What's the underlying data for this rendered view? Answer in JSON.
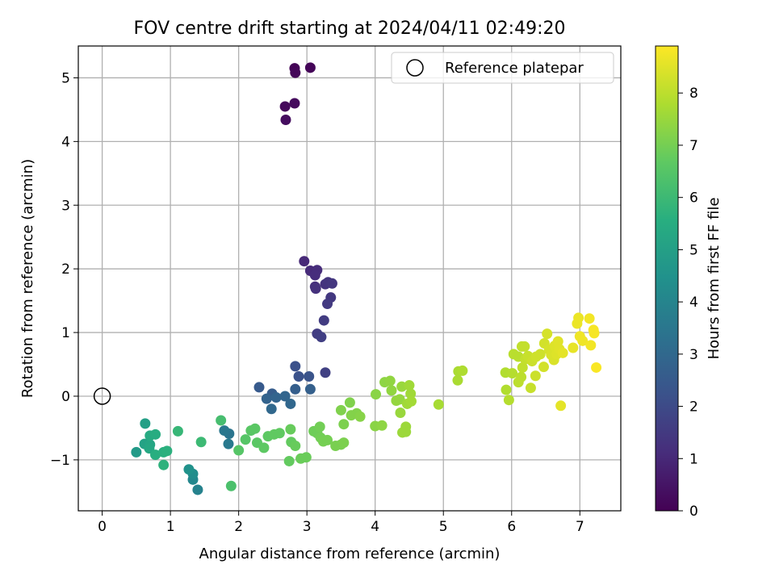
{
  "chart_data": {
    "type": "scatter",
    "title": "FOV centre drift starting at 2024/04/11 02:49:20",
    "xlabel": "Angular distance from reference (arcmin)",
    "ylabel": "Rotation from reference (arcmin)",
    "xlim": [
      -0.35,
      7.6
    ],
    "ylim": [
      -1.8,
      5.5
    ],
    "xticks": [
      0,
      1,
      2,
      3,
      4,
      5,
      6,
      7
    ],
    "yticks": [
      -1,
      0,
      1,
      2,
      3,
      4,
      5
    ],
    "grid": true,
    "legend": {
      "location": "upper-right",
      "entries": [
        "Reference platepar"
      ]
    },
    "reference_point": {
      "x": 0,
      "y": 0,
      "label": "Reference platepar"
    },
    "colorbar": {
      "label": "Hours from first FF file",
      "range": [
        0,
        8.9
      ],
      "ticks": [
        0,
        1,
        2,
        3,
        4,
        5,
        6,
        7,
        8
      ],
      "colormap": "viridis"
    },
    "points": [
      {
        "x": 2.82,
        "y": 5.15,
        "h": 0.05
      },
      {
        "x": 3.05,
        "y": 5.16,
        "h": 0.1
      },
      {
        "x": 2.83,
        "y": 5.08,
        "h": 0.12
      },
      {
        "x": 2.68,
        "y": 4.55,
        "h": 0.2
      },
      {
        "x": 2.82,
        "y": 4.6,
        "h": 0.25
      },
      {
        "x": 2.69,
        "y": 4.34,
        "h": 0.3
      },
      {
        "x": 2.96,
        "y": 2.12,
        "h": 1.0
      },
      {
        "x": 3.05,
        "y": 1.97,
        "h": 1.05
      },
      {
        "x": 3.15,
        "y": 1.98,
        "h": 1.1
      },
      {
        "x": 3.12,
        "y": 1.9,
        "h": 1.15
      },
      {
        "x": 3.12,
        "y": 1.72,
        "h": 1.2
      },
      {
        "x": 3.13,
        "y": 1.69,
        "h": 1.25
      },
      {
        "x": 3.27,
        "y": 1.76,
        "h": 1.3
      },
      {
        "x": 3.31,
        "y": 1.79,
        "h": 1.35
      },
      {
        "x": 3.37,
        "y": 1.77,
        "h": 1.4
      },
      {
        "x": 3.35,
        "y": 1.55,
        "h": 1.45
      },
      {
        "x": 3.3,
        "y": 1.45,
        "h": 1.5
      },
      {
        "x": 3.25,
        "y": 1.19,
        "h": 1.55
      },
      {
        "x": 3.15,
        "y": 0.98,
        "h": 1.6
      },
      {
        "x": 3.21,
        "y": 0.93,
        "h": 1.65
      },
      {
        "x": 3.27,
        "y": 0.37,
        "h": 1.7
      },
      {
        "x": 2.83,
        "y": 0.47,
        "h": 2.2
      },
      {
        "x": 2.88,
        "y": 0.31,
        "h": 2.25
      },
      {
        "x": 3.03,
        "y": 0.31,
        "h": 2.3
      },
      {
        "x": 2.3,
        "y": 0.14,
        "h": 2.5
      },
      {
        "x": 2.49,
        "y": 0.04,
        "h": 2.6
      },
      {
        "x": 2.83,
        "y": 0.11,
        "h": 2.65
      },
      {
        "x": 3.05,
        "y": 0.11,
        "h": 2.7
      },
      {
        "x": 2.41,
        "y": -0.04,
        "h": 2.8
      },
      {
        "x": 2.55,
        "y": -0.02,
        "h": 2.85
      },
      {
        "x": 2.68,
        "y": 0.0,
        "h": 2.9
      },
      {
        "x": 2.76,
        "y": -0.12,
        "h": 2.95
      },
      {
        "x": 2.48,
        "y": -0.2,
        "h": 3.0
      },
      {
        "x": 1.86,
        "y": -0.59,
        "h": 3.4
      },
      {
        "x": 1.79,
        "y": -0.54,
        "h": 3.5
      },
      {
        "x": 1.85,
        "y": -0.75,
        "h": 3.6
      },
      {
        "x": 1.4,
        "y": -1.47,
        "h": 3.9
      },
      {
        "x": 1.33,
        "y": -1.31,
        "h": 4.1
      },
      {
        "x": 1.33,
        "y": -1.22,
        "h": 4.3
      },
      {
        "x": 1.27,
        "y": -1.15,
        "h": 4.5
      },
      {
        "x": 0.5,
        "y": -0.88,
        "h": 4.8
      },
      {
        "x": 0.63,
        "y": -0.43,
        "h": 5.0
      },
      {
        "x": 0.62,
        "y": -0.75,
        "h": 5.1
      },
      {
        "x": 0.7,
        "y": -0.76,
        "h": 5.2
      },
      {
        "x": 0.69,
        "y": -0.82,
        "h": 5.3
      },
      {
        "x": 0.7,
        "y": -0.62,
        "h": 5.4
      },
      {
        "x": 0.78,
        "y": -0.6,
        "h": 5.5
      },
      {
        "x": 0.78,
        "y": -0.92,
        "h": 5.55
      },
      {
        "x": 0.9,
        "y": -0.88,
        "h": 5.6
      },
      {
        "x": 0.95,
        "y": -0.86,
        "h": 5.65
      },
      {
        "x": 0.9,
        "y": -1.08,
        "h": 5.7
      },
      {
        "x": 1.11,
        "y": -0.55,
        "h": 5.9
      },
      {
        "x": 1.45,
        "y": -0.72,
        "h": 6.0
      },
      {
        "x": 1.74,
        "y": -0.38,
        "h": 6.2
      },
      {
        "x": 1.89,
        "y": -1.41,
        "h": 6.3
      },
      {
        "x": 2.0,
        "y": -0.85,
        "h": 6.5
      },
      {
        "x": 2.1,
        "y": -0.68,
        "h": 6.5
      },
      {
        "x": 2.18,
        "y": -0.54,
        "h": 6.55
      },
      {
        "x": 2.24,
        "y": -0.51,
        "h": 6.6
      },
      {
        "x": 2.27,
        "y": -0.73,
        "h": 6.6
      },
      {
        "x": 2.37,
        "y": -0.81,
        "h": 6.65
      },
      {
        "x": 2.43,
        "y": -0.63,
        "h": 6.65
      },
      {
        "x": 2.52,
        "y": -0.6,
        "h": 6.7
      },
      {
        "x": 2.6,
        "y": -0.58,
        "h": 6.7
      },
      {
        "x": 2.74,
        "y": -1.02,
        "h": 6.75
      },
      {
        "x": 2.77,
        "y": -0.72,
        "h": 6.75
      },
      {
        "x": 2.76,
        "y": -0.52,
        "h": 6.8
      },
      {
        "x": 2.83,
        "y": -0.78,
        "h": 6.8
      },
      {
        "x": 2.91,
        "y": -0.98,
        "h": 6.85
      },
      {
        "x": 2.99,
        "y": -0.96,
        "h": 6.85
      },
      {
        "x": 3.1,
        "y": -0.55,
        "h": 6.9
      },
      {
        "x": 3.15,
        "y": -0.58,
        "h": 6.9
      },
      {
        "x": 3.19,
        "y": -0.48,
        "h": 6.95
      },
      {
        "x": 3.2,
        "y": -0.65,
        "h": 6.95
      },
      {
        "x": 3.24,
        "y": -0.71,
        "h": 7.0
      },
      {
        "x": 3.3,
        "y": -0.69,
        "h": 7.0
      },
      {
        "x": 3.42,
        "y": -0.78,
        "h": 7.05
      },
      {
        "x": 3.5,
        "y": -0.76,
        "h": 7.05
      },
      {
        "x": 3.54,
        "y": -0.73,
        "h": 7.1
      },
      {
        "x": 3.54,
        "y": -0.44,
        "h": 7.1
      },
      {
        "x": 3.5,
        "y": -0.22,
        "h": 7.15
      },
      {
        "x": 3.63,
        "y": -0.1,
        "h": 7.15
      },
      {
        "x": 3.65,
        "y": -0.3,
        "h": 7.2
      },
      {
        "x": 3.73,
        "y": -0.27,
        "h": 7.2
      },
      {
        "x": 3.78,
        "y": -0.32,
        "h": 7.25
      },
      {
        "x": 4.0,
        "y": -0.47,
        "h": 7.3
      },
      {
        "x": 4.01,
        "y": 0.03,
        "h": 7.3
      },
      {
        "x": 4.1,
        "y": -0.46,
        "h": 7.35
      },
      {
        "x": 4.14,
        "y": 0.22,
        "h": 7.35
      },
      {
        "x": 4.22,
        "y": 0.24,
        "h": 7.4
      },
      {
        "x": 4.24,
        "y": 0.09,
        "h": 7.4
      },
      {
        "x": 4.31,
        "y": -0.07,
        "h": 7.45
      },
      {
        "x": 4.36,
        "y": -0.05,
        "h": 7.45
      },
      {
        "x": 4.37,
        "y": -0.26,
        "h": 7.5
      },
      {
        "x": 4.39,
        "y": 0.15,
        "h": 7.5
      },
      {
        "x": 4.4,
        "y": -0.57,
        "h": 7.55
      },
      {
        "x": 4.45,
        "y": -0.48,
        "h": 7.55
      },
      {
        "x": 4.45,
        "y": -0.56,
        "h": 7.55
      },
      {
        "x": 4.47,
        "y": -0.12,
        "h": 7.6
      },
      {
        "x": 4.5,
        "y": 0.17,
        "h": 7.6
      },
      {
        "x": 4.52,
        "y": 0.04,
        "h": 7.6
      },
      {
        "x": 4.53,
        "y": -0.08,
        "h": 7.65
      },
      {
        "x": 4.93,
        "y": -0.13,
        "h": 7.7
      },
      {
        "x": 5.21,
        "y": 0.25,
        "h": 7.75
      },
      {
        "x": 5.22,
        "y": 0.39,
        "h": 7.75
      },
      {
        "x": 5.28,
        "y": 0.4,
        "h": 7.8
      },
      {
        "x": 5.91,
        "y": 0.37,
        "h": 7.85
      },
      {
        "x": 5.92,
        "y": 0.1,
        "h": 7.85
      },
      {
        "x": 5.96,
        "y": -0.06,
        "h": 7.9
      },
      {
        "x": 6.01,
        "y": 0.36,
        "h": 7.9
      },
      {
        "x": 6.03,
        "y": 0.66,
        "h": 7.95
      },
      {
        "x": 6.1,
        "y": 0.62,
        "h": 7.95
      },
      {
        "x": 6.1,
        "y": 0.22,
        "h": 8.0
      },
      {
        "x": 6.14,
        "y": 0.3,
        "h": 8.0
      },
      {
        "x": 6.15,
        "y": 0.78,
        "h": 8.05
      },
      {
        "x": 6.16,
        "y": 0.45,
        "h": 8.05
      },
      {
        "x": 6.19,
        "y": 0.78,
        "h": 8.1
      },
      {
        "x": 6.2,
        "y": 0.58,
        "h": 8.1
      },
      {
        "x": 6.24,
        "y": 0.63,
        "h": 8.15
      },
      {
        "x": 6.28,
        "y": 0.13,
        "h": 8.15
      },
      {
        "x": 6.3,
        "y": 0.55,
        "h": 8.2
      },
      {
        "x": 6.35,
        "y": 0.32,
        "h": 8.2
      },
      {
        "x": 6.36,
        "y": 0.62,
        "h": 8.25
      },
      {
        "x": 6.42,
        "y": 0.66,
        "h": 8.25
      },
      {
        "x": 6.47,
        "y": 0.46,
        "h": 8.3
      },
      {
        "x": 6.48,
        "y": 0.83,
        "h": 8.3
      },
      {
        "x": 6.52,
        "y": 0.98,
        "h": 8.35
      },
      {
        "x": 6.55,
        "y": 0.73,
        "h": 8.35
      },
      {
        "x": 6.58,
        "y": 0.65,
        "h": 8.4
      },
      {
        "x": 6.62,
        "y": 0.57,
        "h": 8.4
      },
      {
        "x": 6.63,
        "y": 0.79,
        "h": 8.45
      },
      {
        "x": 6.66,
        "y": 0.66,
        "h": 8.45
      },
      {
        "x": 6.68,
        "y": 0.86,
        "h": 8.5
      },
      {
        "x": 6.7,
        "y": 0.74,
        "h": 8.5
      },
      {
        "x": 6.72,
        "y": -0.15,
        "h": 8.55
      },
      {
        "x": 6.75,
        "y": 0.68,
        "h": 8.55
      },
      {
        "x": 6.9,
        "y": 0.76,
        "h": 8.6
      },
      {
        "x": 6.96,
        "y": 1.14,
        "h": 8.65
      },
      {
        "x": 6.98,
        "y": 1.23,
        "h": 8.65
      },
      {
        "x": 7.0,
        "y": 0.94,
        "h": 8.7
      },
      {
        "x": 7.04,
        "y": 0.87,
        "h": 8.7
      },
      {
        "x": 7.14,
        "y": 1.22,
        "h": 8.75
      },
      {
        "x": 7.16,
        "y": 0.8,
        "h": 8.75
      },
      {
        "x": 7.2,
        "y": 1.04,
        "h": 8.8
      },
      {
        "x": 7.21,
        "y": 0.99,
        "h": 8.8
      },
      {
        "x": 7.24,
        "y": 0.45,
        "h": 8.85
      }
    ]
  }
}
